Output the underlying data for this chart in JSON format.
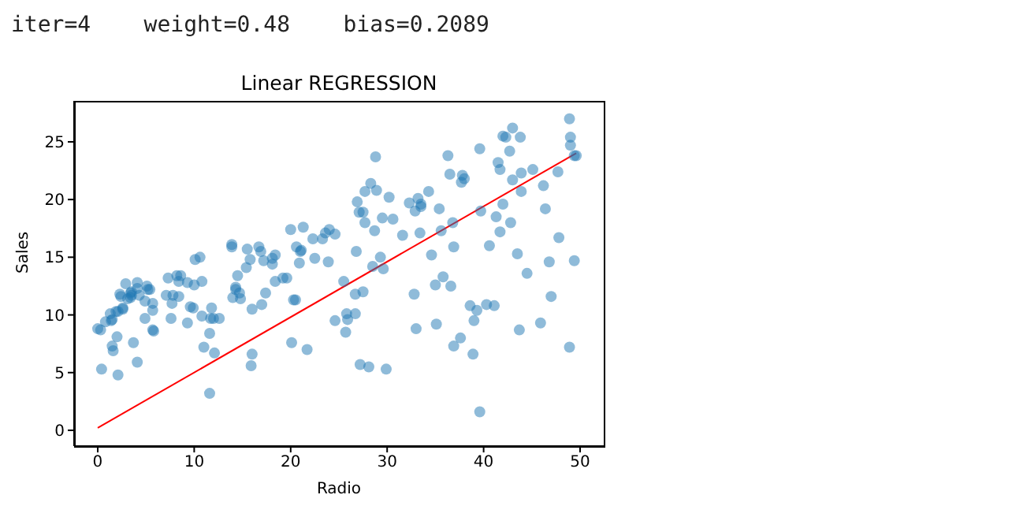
{
  "chart_data": {
    "type": "scatter",
    "title": "Linear REGRESSION",
    "xlabel": "Radio",
    "ylabel": "Sales",
    "annotations": [
      "iter=4    weight=0.48    bias=0.2089"
    ],
    "xlim": [
      -2.45,
      52.45
    ],
    "ylim": [
      -1.37,
      28.55
    ],
    "xticks": [
      0,
      10,
      20,
      30,
      40,
      50
    ],
    "yticks": [
      0,
      5,
      10,
      15,
      20,
      25
    ],
    "series": [
      {
        "marker": "circle",
        "color": "#1f77b4",
        "x": [
          37.8,
          39.3,
          45.9,
          41.3,
          10.8,
          48.9,
          32.8,
          19.6,
          2.1,
          2.6,
          5.8,
          24,
          35.1,
          7.6,
          32.9,
          47.7,
          36.6,
          39.6,
          20.5,
          23.9,
          27.7,
          5.1,
          15.9,
          16.9,
          12.6,
          3.5,
          29.3,
          16.7,
          27.1,
          16,
          28.3,
          17.4,
          1.5,
          20,
          1.4,
          4.1,
          43.8,
          49.4,
          26.7,
          37.7,
          22.3,
          33.4,
          27.7,
          8.4,
          25.7,
          22.5,
          9.9,
          41.5,
          15.8,
          11.7,
          3.1,
          9.6,
          41.7,
          46.2,
          28.8,
          49.4,
          28.1,
          19.2,
          49.6,
          29.5,
          2,
          42.7,
          15.5,
          29.6,
          42.8,
          9.3,
          24.6,
          14.5,
          27.5,
          43.9,
          30.6,
          14.3,
          33,
          5.7,
          24.6,
          43.7,
          1.6,
          28.5,
          29.9,
          7.7,
          26.7,
          4.1,
          20.3,
          44.5,
          43,
          18.4,
          27.5,
          40.6,
          25.5,
          47.8,
          4.9,
          1.5,
          33.5,
          36.5,
          14,
          31.6,
          3.5,
          21,
          42.3,
          41.7,
          4.3,
          36.3,
          10.1,
          17.2,
          34.3,
          46.4,
          11,
          0.3,
          0.4,
          26.9,
          8.2,
          38,
          15.4,
          20.6,
          46.8,
          35,
          14.3,
          0.8,
          36.9,
          16,
          26.8,
          21.7,
          2.4,
          34.6,
          32.3,
          11.8,
          38.9,
          0,
          49,
          12,
          39.6,
          2.9,
          27.2,
          33.5,
          38.6,
          47,
          39,
          28.9,
          25.9,
          43.9,
          17,
          35.4,
          33.2,
          5.7,
          14.8,
          1.9,
          7.3,
          49,
          40.3,
          25.8,
          13.9,
          8.4,
          23.3,
          39.7,
          21.1,
          11.6,
          43.5,
          1.3,
          36.9,
          18.4,
          18.1,
          35.8,
          18.1,
          36.8,
          14.7,
          3.4,
          37.6,
          5.2,
          23.6,
          10.6,
          11.6,
          20.9,
          20.1,
          7.1,
          3.4,
          48.9,
          30.2,
          7.8,
          2.3,
          10,
          2.6,
          5.4,
          5.7,
          43,
          21.3,
          45.1,
          2.1,
          28.7,
          13.9,
          12.1,
          41.1,
          10.8,
          4.1,
          42,
          35.6,
          3.7,
          4.9,
          9.3,
          42,
          8.6
        ],
        "values": [
          22.1,
          10.4,
          9.3,
          18.5,
          12.9,
          7.2,
          11.8,
          13.2,
          4.8,
          10.6,
          8.6,
          17.4,
          9.2,
          9.7,
          19,
          22.4,
          12.5,
          24.4,
          11.3,
          14.6,
          18,
          12.5,
          5.6,
          15.5,
          9.7,
          12,
          15,
          15.9,
          18.9,
          10.5,
          21.4,
          11.9,
          9.6,
          17.4,
          9.5,
          12.8,
          25.4,
          14.7,
          10.1,
          21.5,
          16.6,
          17.1,
          20.7,
          12.9,
          8.5,
          14.9,
          10.6,
          23.2,
          14.8,
          9.7,
          11.4,
          10.7,
          22.6,
          21.2,
          23.7,
          23.8,
          5.5,
          13.2,
          23.8,
          18.4,
          8.1,
          24.2,
          15.7,
          14,
          18,
          9.3,
          9.5,
          13.4,
          18.9,
          22.3,
          18.3,
          12.4,
          8.8,
          11,
          17,
          8.7,
          6.9,
          14.2,
          5.3,
          11,
          11.8,
          12.3,
          11.3,
          13.6,
          21.7,
          15.2,
          12,
          16,
          12.9,
          16.7,
          11.2,
          7.3,
          19.4,
          22.2,
          11.5,
          16.9,
          11.7,
          15.5,
          25.4,
          17.2,
          11.7,
          23.8,
          14.8,
          14.7,
          20.7,
          19.2,
          7.2,
          8.7,
          5.3,
          19.8,
          13.4,
          21.8,
          14.1,
          15.9,
          14.6,
          12.6,
          12.2,
          9.4,
          15.9,
          6.6,
          15.5,
          7,
          11.6,
          15.2,
          19.7,
          10.6,
          6.6,
          8.8,
          24.7,
          9.7,
          1.6,
          12.7,
          5.7,
          19.6,
          10.8,
          11.6,
          9.5,
          20.8,
          9.6,
          20.7,
          10.9,
          19.2,
          20.1,
          10.4,
          11.4,
          10.3,
          13.2,
          25.4,
          10.9,
          10.1,
          16.1,
          11.6,
          16.6,
          19,
          15.6,
          3.2,
          15.3,
          10.1,
          7.3,
          12.9,
          14.4,
          13.3,
          14.9,
          18,
          11.9,
          11.9,
          8,
          12.2,
          17.1,
          15,
          8.4,
          14.5,
          7.6,
          11.7,
          11.5,
          27,
          20.2,
          11.7,
          11.8,
          12.6,
          10.5,
          12.2,
          8.7,
          26.2,
          17.6,
          22.6,
          10.3,
          17.3,
          15.9,
          6.7,
          10.8,
          9.9,
          5.9,
          19.6,
          17.3,
          7.6,
          9.7,
          12.8,
          25.5,
          13.4
        ]
      },
      {
        "type": "line",
        "marker": "none",
        "color": "#ff0000",
        "x": [
          0,
          49.6
        ],
        "values": [
          0.21,
          24.02
        ]
      }
    ]
  }
}
